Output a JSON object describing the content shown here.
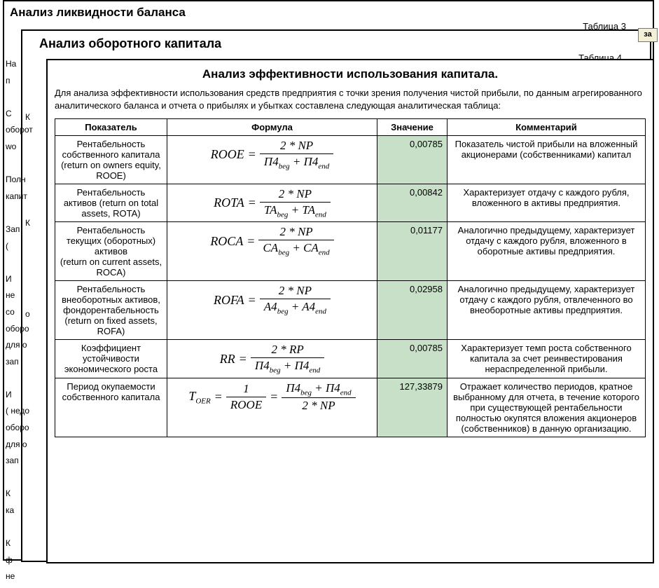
{
  "win1": {
    "title": "Анализ ликвидности баланса",
    "tablelabel": "Таблица 3"
  },
  "win2": {
    "title": "Анализ оборотного капитала",
    "tablelabel": "Таблица 4"
  },
  "za_tab": "за",
  "win3": {
    "title": "Анализ эффективности использования капитала.",
    "desc": "Для анализа эффективности использования средств предприятия с точки зрения получения чистой прибыли, по данным агрегированного аналитического баланса и отчета о прибылях и убытках составлена следующая аналитическая таблица:"
  },
  "headers": {
    "indicator": "Показатель",
    "formula": "Формула",
    "value": "Значение",
    "comment": "Комментарий"
  },
  "rows": [
    {
      "indicator": "Рентабельность собственного капитала (return on owners equity, ROOE)",
      "lhs": "ROOE",
      "num": "2 * NP",
      "den_a": "П4",
      "den_a_sub": "beg",
      "den_b": "П4",
      "den_b_sub": "end",
      "value": "0,00785",
      "comment": "Показатель чистой прибыли на вложенный акционерами (собственниками) капитал"
    },
    {
      "indicator": "Рентабельность активов (return on total assets, ROTA)",
      "lhs": "ROTA",
      "num": "2 * NP",
      "den_a": "TA",
      "den_a_sub": "beg",
      "den_b": "TA",
      "den_b_sub": "end",
      "value": "0,00842",
      "comment": "Характеризует отдачу с каждого рубля, вложенного в активы предприятия."
    },
    {
      "indicator": "Рентабельность текущих (оборотных) активов\n(return on current assets, ROCA)",
      "lhs": "ROCA",
      "num": "2 * NP",
      "den_a": "CA",
      "den_a_sub": "beg",
      "den_b": "CA",
      "den_b_sub": "end",
      "value": "0,01177",
      "comment": "Аналогично предыдущему, характеризует отдачу с каждого рубля, вложенного в оборотные активы предприятия."
    },
    {
      "indicator": "Рентабельность внеоборотных активов, фондорентабельность (return on fixed assets, ROFA)",
      "lhs": "ROFA",
      "num": "2 * NP",
      "den_a": "A4",
      "den_a_sub": "beg",
      "den_b": "A4",
      "den_b_sub": "end",
      "value": "0,02958",
      "comment": "Аналогично предыдущему, характеризует отдачу с каждого рубля, отвлеченного во внеоборотные активы предприятия."
    },
    {
      "indicator": "Коэффициент устойчивости экономического роста",
      "lhs": "RR",
      "num": "2 * RP",
      "den_a": "П4",
      "den_a_sub": "beg",
      "den_b": "П4",
      "den_b_sub": "end",
      "value": "0,00785",
      "comment": "Характеризует темп роста собственного капитала за счет реинвестирования нераспределенной прибыли."
    },
    {
      "indicator": "Период окупаемости собственного капитала",
      "lhs": "T",
      "lhs_sub": "OER",
      "num": "1",
      "den_plain": "ROOE",
      "alt_num_a": "П4",
      "alt_num_a_sub": "beg",
      "alt_num_b": "П4",
      "alt_num_b_sub": "end",
      "alt_den": "2 * NP",
      "value": "127,33879",
      "comment": "Отражает количество периодов, кратное выбранному для отчета, в течение которого при существующей рентабельности полностью окупятся вложения акционеров (собственников) в данную организацию."
    }
  ],
  "left1": [
    "На",
    "п",
    " ",
    "С",
    "оборот",
    "wo",
    " ",
    "Полн",
    "капит",
    " ",
    "Зап",
    "(",
    " ",
    "И",
    "не",
    "со",
    "оборо",
    "для о",
    "зап",
    " ",
    "И",
    "( недо",
    "оборо",
    "для о",
    "зап",
    " ",
    "К",
    "ка",
    " ",
    "К",
    "ф",
    "не"
  ],
  "left2": [
    "К",
    " ",
    " ",
    " ",
    " ",
    " ",
    " ",
    "К",
    " ",
    " ",
    " ",
    " ",
    " ",
    "о",
    " "
  ]
}
